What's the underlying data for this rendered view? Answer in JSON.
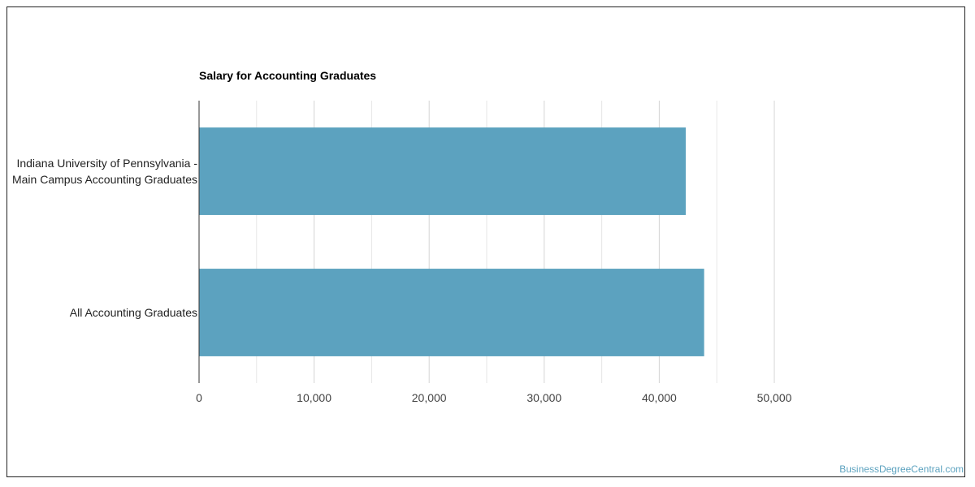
{
  "chart_data": {
    "type": "bar",
    "orientation": "horizontal",
    "title": "Salary for Accounting Graduates",
    "xlabel": "",
    "ylabel": "",
    "categories": [
      "Indiana University of Pennsylvania - Main Campus Accounting Graduates",
      "All Accounting Graduates"
    ],
    "values": [
      42300,
      43900
    ],
    "xlim": [
      0,
      50000
    ],
    "ticks": [
      "0",
      "10,000",
      "20,000",
      "30,000",
      "40,000",
      "50,000"
    ],
    "grid": true,
    "bar_color": "#5ca2bf"
  },
  "watermark": {
    "text": "BusinessDegreeCentral.com",
    "color": "#5ca2bf"
  }
}
